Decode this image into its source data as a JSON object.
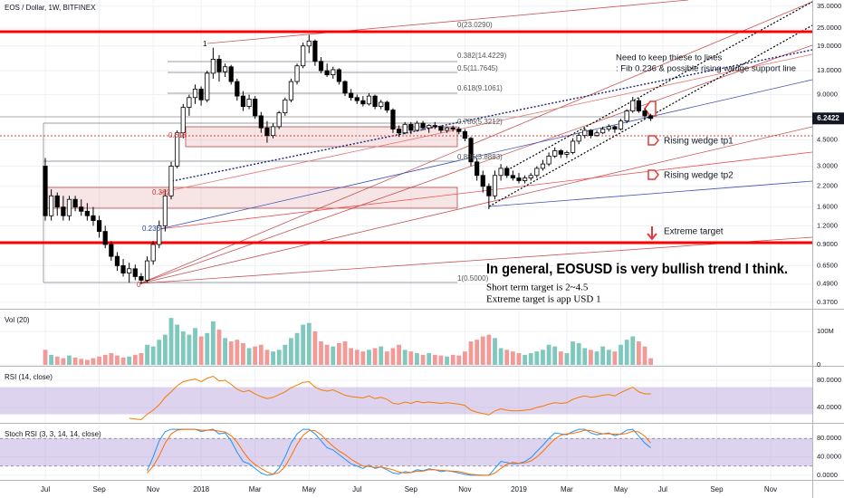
{
  "chart_data": [
    {
      "type": "candlestick",
      "title": "EOS / Dollar, 1W, BITFINEX",
      "log": true,
      "grid": true,
      "up_color": "#ffffff",
      "down_color": "#000000",
      "border_color": "#000000",
      "categories": [
        "Jul",
        null,
        null,
        null,
        null,
        null,
        null,
        null,
        null,
        "Sep",
        null,
        null,
        null,
        null,
        null,
        null,
        null,
        null,
        "Nov",
        null,
        null,
        null,
        null,
        null,
        null,
        null,
        "2018",
        null,
        null,
        null,
        null,
        null,
        null,
        null,
        null,
        "Mar",
        null,
        null,
        null,
        null,
        null,
        null,
        null,
        null,
        "May",
        null,
        null,
        null,
        null,
        null,
        null,
        null,
        "Jul",
        null,
        null,
        null,
        null,
        null,
        null,
        null,
        null,
        "Sep",
        null,
        null,
        null,
        null,
        null,
        null,
        null,
        null,
        "Nov",
        null,
        null,
        null,
        null,
        null,
        null,
        null,
        null,
        "2019",
        null,
        null,
        null,
        null,
        null,
        null,
        null,
        "Mar",
        null,
        null,
        null,
        null,
        null,
        null,
        null,
        null,
        "May",
        null,
        null,
        null,
        null,
        null,
        null,
        "Jul",
        null,
        null,
        null,
        null,
        null,
        null,
        null,
        null,
        "Sep",
        null,
        null,
        null,
        null,
        null,
        null,
        null,
        null,
        "Nov"
      ],
      "open": [
        3.0,
        1.4,
        1.9,
        1.6,
        1.4,
        1.8,
        1.6,
        1.5,
        1.4,
        1.3,
        1.1,
        0.9,
        0.75,
        0.65,
        0.58,
        0.62,
        0.55,
        0.52,
        0.7,
        0.9,
        1.2,
        1.9,
        3.0,
        5.0,
        7.4,
        8.6,
        9.8,
        8.3,
        12.5,
        15.5,
        12.8,
        13.8,
        11.0,
        8.8,
        7.5,
        8.4,
        6.5,
        5.4,
        4.8,
        5.5,
        6.8,
        8.3,
        11.0,
        14.0,
        19.0,
        20.5,
        15.0,
        13.0,
        12.2,
        13.2,
        11.0,
        9.2,
        8.6,
        8.2,
        7.8,
        8.8,
        7.5,
        8.0,
        7.1,
        5.3,
        5.0,
        5.7,
        5.2,
        5.8,
        5.4,
        5.6,
        5.5,
        5.2,
        5.4,
        5.3,
        5.1,
        4.6,
        3.2,
        2.6,
        2.2,
        1.9,
        2.6,
        2.9,
        2.6,
        2.5,
        2.4,
        2.5,
        2.6,
        2.9,
        3.1,
        3.5,
        3.8,
        3.6,
        3.7,
        4.4,
        4.8,
        5.2,
        4.8,
        5.0,
        5.3,
        5.5,
        5.3,
        6.0,
        7.0,
        8.2,
        7.0,
        6.5,
        null,
        null,
        null,
        null,
        null,
        null,
        null,
        null,
        null,
        null,
        null,
        null,
        null,
        null,
        null,
        null,
        null,
        null,
        null,
        null
      ],
      "high": [
        3.4,
        2.1,
        2.0,
        1.9,
        1.9,
        1.9,
        1.8,
        1.7,
        1.6,
        1.4,
        1.2,
        0.95,
        0.8,
        0.72,
        0.68,
        0.66,
        0.58,
        0.75,
        0.95,
        1.3,
        2.1,
        3.2,
        5.2,
        7.8,
        9.0,
        10.5,
        10.2,
        13.0,
        18.5,
        16.5,
        14.5,
        14.2,
        11.5,
        9.5,
        9.0,
        8.8,
        6.9,
        6.0,
        5.8,
        7.0,
        8.6,
        11.5,
        14.5,
        20.0,
        22.5,
        21.0,
        16.0,
        14.5,
        13.8,
        13.5,
        11.2,
        9.8,
        9.0,
        8.8,
        9.2,
        9.0,
        8.3,
        8.2,
        7.3,
        5.6,
        5.9,
        5.9,
        6.0,
        6.0,
        5.7,
        5.9,
        5.6,
        5.5,
        5.6,
        5.5,
        5.3,
        4.7,
        3.4,
        2.8,
        2.3,
        2.8,
        3.1,
        3.0,
        2.8,
        2.7,
        2.6,
        2.7,
        3.0,
        3.3,
        3.7,
        4.0,
        3.9,
        3.8,
        4.6,
        5.0,
        5.4,
        5.3,
        5.2,
        5.5,
        5.7,
        5.6,
        6.2,
        7.2,
        8.7,
        8.5,
        7.3,
        6.7,
        null,
        null,
        null,
        null,
        null,
        null,
        null,
        null,
        null,
        null,
        null,
        null,
        null,
        null,
        null,
        null,
        null,
        null,
        null,
        null
      ],
      "low": [
        1.3,
        1.3,
        1.4,
        1.3,
        1.3,
        1.5,
        1.4,
        1.3,
        1.2,
        1.0,
        0.85,
        0.7,
        0.6,
        0.55,
        0.5,
        0.52,
        0.49,
        0.5,
        0.66,
        0.85,
        1.1,
        1.8,
        2.9,
        4.6,
        6.5,
        7.8,
        7.6,
        8.0,
        11.5,
        11.0,
        11.8,
        10.5,
        8.2,
        7.0,
        7.2,
        6.2,
        5.0,
        4.3,
        4.6,
        5.3,
        6.5,
        8.0,
        10.5,
        13.5,
        17.0,
        14.0,
        12.5,
        11.8,
        11.5,
        10.5,
        8.8,
        8.2,
        7.8,
        7.5,
        7.6,
        7.2,
        7.2,
        6.8,
        5.0,
        4.7,
        4.9,
        4.9,
        5.1,
        5.2,
        5.0,
        5.3,
        5.0,
        5.0,
        5.1,
        4.9,
        4.4,
        3.0,
        2.4,
        2.0,
        1.55,
        1.8,
        2.4,
        2.5,
        2.4,
        2.3,
        2.3,
        2.4,
        2.5,
        2.8,
        3.0,
        3.4,
        3.4,
        3.4,
        3.6,
        4.2,
        4.6,
        4.6,
        4.7,
        4.9,
        5.1,
        5.0,
        5.2,
        5.8,
        6.8,
        6.8,
        6.2,
        6.0,
        null,
        null,
        null,
        null,
        null,
        null,
        null,
        null,
        null,
        null,
        null,
        null,
        null,
        null,
        null,
        null,
        null,
        null,
        null,
        null
      ],
      "close": [
        1.4,
        1.9,
        1.6,
        1.4,
        1.8,
        1.6,
        1.5,
        1.4,
        1.3,
        1.1,
        0.9,
        0.75,
        0.65,
        0.58,
        0.62,
        0.55,
        0.52,
        0.7,
        0.9,
        1.2,
        1.9,
        3.0,
        5.0,
        7.4,
        8.6,
        9.8,
        8.3,
        12.5,
        15.5,
        12.8,
        13.8,
        11.0,
        8.8,
        7.5,
        8.4,
        6.5,
        5.4,
        4.8,
        5.5,
        6.8,
        8.3,
        11.0,
        14.0,
        19.0,
        20.5,
        15.0,
        13.0,
        12.2,
        13.2,
        11.0,
        9.2,
        8.6,
        8.2,
        7.8,
        8.8,
        7.5,
        8.0,
        7.1,
        5.3,
        5.0,
        5.7,
        5.2,
        5.8,
        5.4,
        5.6,
        5.5,
        5.2,
        5.4,
        5.3,
        5.1,
        4.6,
        3.2,
        2.6,
        2.2,
        1.9,
        2.6,
        2.9,
        2.6,
        2.5,
        2.4,
        2.5,
        2.6,
        2.9,
        3.1,
        3.5,
        3.8,
        3.6,
        3.7,
        4.4,
        4.8,
        5.2,
        4.8,
        5.0,
        5.3,
        5.5,
        5.3,
        6.0,
        7.0,
        8.2,
        7.0,
        6.5,
        6.2422,
        null,
        null,
        null,
        null,
        null,
        null,
        null,
        null,
        null,
        null,
        null,
        null,
        null,
        null,
        null,
        null,
        null,
        null,
        null,
        null
      ],
      "ylim": [
        0.34,
        38.5
      ],
      "yticks": [
        {
          "value": 35,
          "label": "35.0000"
        },
        {
          "value": 25,
          "label": "25.0000"
        },
        {
          "value": 19,
          "label": "19.0000"
        },
        {
          "value": 13,
          "label": "13.0000"
        },
        {
          "value": 9,
          "label": "9.0000"
        },
        {
          "value": 4.5,
          "label": "4.5000"
        },
        {
          "value": 3,
          "label": "3.0000"
        },
        {
          "value": 2.2,
          "label": "2.2000"
        },
        {
          "value": 1.6,
          "label": "1.6000"
        },
        {
          "value": 1.2,
          "label": "1.2000"
        },
        {
          "value": 0.9,
          "label": "0.9000"
        },
        {
          "value": 0.65,
          "label": "0.6500"
        },
        {
          "value": 0.49,
          "label": "0.4900"
        },
        {
          "value": 0.37,
          "label": "0.3700"
        }
      ],
      "annotations": [
        "0(23.0290)",
        "0.382(14.4229)",
        "0.5(11.7645)",
        "0.618(9.1061)",
        "0.786(5.3212)",
        "0.886(3.8883)",
        "1(0.5000)",
        "1",
        "0",
        "0.618",
        "0.382",
        "0.236",
        "Need to keep thiese to lines",
        ": Fib 0.236 & possible rising wedge support line",
        "Rising wedge tp1",
        "Rising wedge tp2",
        "Extreme target",
        "In general, EOSUSD is very bullish trend I think.",
        "Short term target is 2~4.5",
        "Extreme target is app USD 1"
      ]
    },
    {
      "type": "bar",
      "title": "Vol (20)",
      "grid": true,
      "up_color": "#7fc8bd",
      "down_color": "#f19a98",
      "values": [
        45000000.0,
        30000000.0,
        25000000.0,
        20000000.0,
        28000000.0,
        22000000.0,
        18000000.0,
        15000000.0,
        20000000.0,
        25000000.0,
        30000000.0,
        35000000.0,
        28000000.0,
        22000000.0,
        25000000.0,
        30000000.0,
        35000000.0,
        60000000.0,
        55000000.0,
        75000000.0,
        90000000.0,
        140000000.0,
        120000000.0,
        100000000.0,
        90000000.0,
        110000000.0,
        85000000.0,
        95000000.0,
        130000000.0,
        105000000.0,
        80000000.0,
        70000000.0,
        75000000.0,
        65000000.0,
        50000000.0,
        55000000.0,
        60000000.0,
        45000000.0,
        40000000.0,
        45000000.0,
        60000000.0,
        80000000.0,
        95000000.0,
        120000000.0,
        125000000.0,
        100000000.0,
        70000000.0,
        60000000.0,
        55000000.0,
        65000000.0,
        70000000.0,
        50000000.0,
        45000000.0,
        40000000.0,
        45000000.0,
        50000000.0,
        55000000.0,
        40000000.0,
        50000000.0,
        60000000.0,
        45000000.0,
        40000000.0,
        35000000.0,
        30000000.0,
        35000000.0,
        30000000.0,
        28000000.0,
        25000000.0,
        30000000.0,
        28000000.0,
        40000000.0,
        70000000.0,
        75000000.0,
        85000000.0,
        90000000.0,
        80000000.0,
        50000000.0,
        45000000.0,
        40000000.0,
        35000000.0,
        30000000.0,
        35000000.0,
        40000000.0,
        45000000.0,
        60000000.0,
        55000000.0,
        40000000.0,
        35000000.0,
        70000000.0,
        65000000.0,
        50000000.0,
        45000000.0,
        40000000.0,
        55000000.0,
        45000000.0,
        40000000.0,
        60000000.0,
        75000000.0,
        85000000.0,
        70000000.0,
        55000000.0,
        20000000.0,
        null,
        null,
        null,
        null,
        null,
        null,
        null,
        null,
        null,
        null,
        null,
        null,
        null,
        null,
        null,
        null,
        null,
        null,
        null,
        null
      ],
      "ylim": [
        0,
        162000000
      ],
      "yticks": [
        {
          "value": 100000000,
          "label": "100M"
        },
        0
      ]
    },
    {
      "type": "line",
      "title": "RSI (14, close)",
      "grid": true,
      "color": "#f57c00",
      "band": [
        30,
        70
      ],
      "band_color": "#b39ddb",
      "band_dashed": false,
      "values": [
        null,
        null,
        null,
        null,
        null,
        null,
        null,
        null,
        null,
        null,
        null,
        null,
        null,
        null,
        24,
        23,
        22,
        30,
        36,
        44,
        55,
        63,
        72,
        78,
        80,
        82,
        78,
        83,
        86,
        79,
        80,
        74,
        67,
        63,
        65,
        60,
        56,
        53,
        55,
        59,
        63,
        69,
        73,
        77,
        78,
        70,
        66,
        64,
        66,
        62,
        58,
        56,
        55,
        54,
        57,
        53,
        55,
        52,
        46,
        45,
        48,
        46,
        49,
        47,
        48,
        47,
        46,
        47,
        46,
        45,
        43,
        36,
        33,
        31,
        29,
        35,
        38,
        36,
        35,
        35,
        36,
        37,
        40,
        42,
        45,
        47,
        46,
        47,
        52,
        55,
        57,
        55,
        56,
        58,
        59,
        57,
        62,
        66,
        70,
        63,
        60,
        60,
        null,
        null,
        null,
        null,
        null,
        null,
        null,
        null,
        null,
        null,
        null,
        null,
        null,
        null,
        null,
        null,
        null,
        null,
        null,
        null
      ],
      "ylim": [
        18.7,
        98.7
      ],
      "yticks": [
        {
          "value": 80,
          "label": "80.0000"
        },
        {
          "value": 40,
          "label": "40.0000"
        }
      ]
    },
    {
      "type": "line",
      "title": "Stoch RSI (3, 3, 14, 14, close)",
      "grid": true,
      "band": [
        20,
        80
      ],
      "band_color": "#b39ddb",
      "band_dashed": true,
      "series": [
        {
          "color": "#2196f3",
          "values": [
            null,
            null,
            null,
            null,
            null,
            null,
            null,
            null,
            null,
            null,
            null,
            null,
            null,
            null,
            null,
            null,
            null,
            10,
            40,
            75,
            95,
            100,
            100,
            100,
            100,
            100,
            95,
            98,
            100,
            90,
            92,
            75,
            50,
            30,
            25,
            15,
            5,
            0,
            2,
            15,
            40,
            70,
            90,
            100,
            100,
            90,
            75,
            60,
            55,
            45,
            35,
            25,
            20,
            15,
            22,
            15,
            18,
            12,
            5,
            3,
            8,
            6,
            12,
            10,
            14,
            12,
            8,
            10,
            8,
            5,
            2,
            0,
            0,
            0,
            0,
            15,
            30,
            28,
            25,
            26,
            30,
            38,
            52,
            65,
            80,
            92,
            90,
            88,
            95,
            100,
            100,
            92,
            88,
            90,
            92,
            86,
            90,
            98,
            100,
            85,
            70,
            60,
            null,
            null,
            null,
            null,
            null,
            null,
            null,
            null,
            null,
            null,
            null,
            null,
            null,
            null,
            null,
            null,
            null,
            null,
            null,
            null
          ]
        },
        {
          "color": "#ff6d00",
          "values": [
            null,
            null,
            null,
            null,
            null,
            null,
            null,
            null,
            null,
            null,
            null,
            null,
            null,
            null,
            null,
            null,
            null,
            5,
            20,
            42,
            70,
            90,
            98,
            100,
            100,
            100,
            98,
            98,
            98,
            96,
            94,
            86,
            72,
            52,
            35,
            23,
            15,
            7,
            2,
            6,
            19,
            42,
            67,
            87,
            97,
            97,
            88,
            75,
            63,
            53,
            45,
            35,
            27,
            20,
            19,
            17,
            18,
            15,
            12,
            7,
            5,
            6,
            9,
            9,
            12,
            12,
            11,
            10,
            9,
            8,
            5,
            2,
            1,
            0,
            0,
            5,
            15,
            24,
            28,
            26,
            27,
            31,
            40,
            52,
            66,
            79,
            87,
            90,
            91,
            94,
            98,
            97,
            93,
            90,
            90,
            89,
            89,
            91,
            96,
            94,
            85,
            70,
            null,
            null,
            null,
            null,
            null,
            null,
            null,
            null,
            null,
            null,
            null,
            null,
            null,
            null,
            null,
            null,
            null,
            null,
            null,
            null
          ]
        }
      ],
      "ylim": [
        -10,
        110
      ],
      "yticks": [
        {
          "value": 80,
          "label": "80.0000"
        },
        {
          "value": 40,
          "label": "40.0000"
        },
        {
          "value": 0,
          "label": "0.0000"
        }
      ]
    }
  ]
}
